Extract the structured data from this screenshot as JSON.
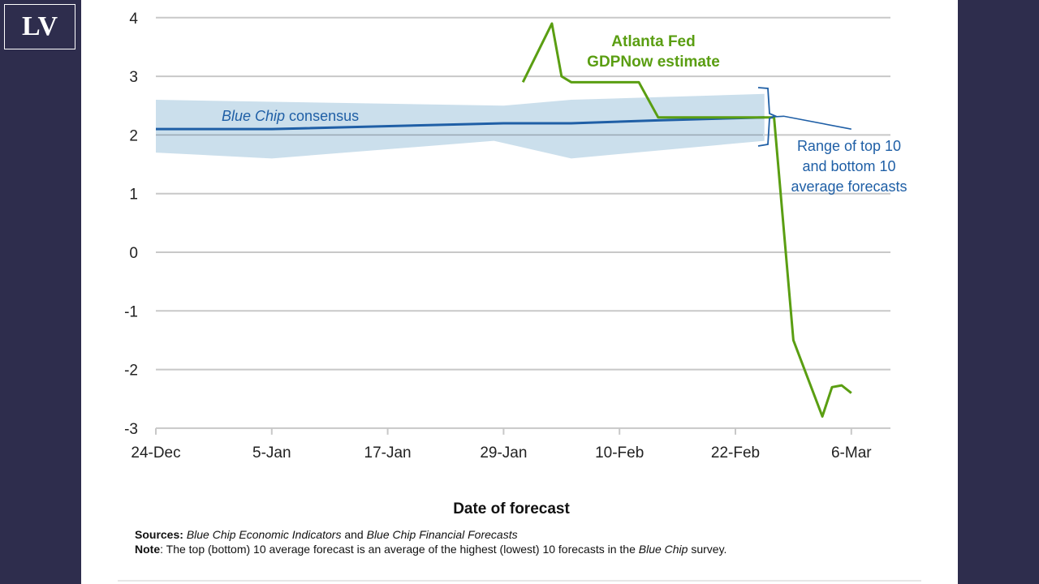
{
  "logo": "LV",
  "colors": {
    "background": "#2e2d4d",
    "consensus": "#1f5fa6",
    "band": "#c5dbea",
    "gdpnow": "#5a9e12",
    "grid": "#c8c8c8"
  },
  "chart_data": {
    "type": "line",
    "xlabel": "Date of forecast",
    "ylabel": "",
    "ylim": [
      -3,
      4
    ],
    "yticks": [
      "4",
      "3",
      "2",
      "1",
      "0",
      "-1",
      "-2",
      "-3"
    ],
    "xticks": [
      "24-Dec",
      "5-Jan",
      "17-Jan",
      "29-Jan",
      "10-Feb",
      "22-Feb",
      "6-Mar"
    ],
    "grid": true,
    "series": [
      {
        "name": "Blue Chip consensus",
        "name_italic": "Blue Chip",
        "name_rest": " consensus",
        "x": [
          "24-Dec",
          "5-Jan",
          "29-Jan",
          "5-Feb",
          "14-Feb",
          "25-Feb",
          "27-Feb",
          "6-Mar"
        ],
        "y": [
          2.1,
          2.1,
          2.2,
          2.2,
          2.25,
          2.3,
          2.32,
          2.1
        ]
      },
      {
        "name": "Atlanta Fed GDPNow estimate",
        "label_lines": [
          "Atlanta Fed",
          "GDPNow estimate"
        ],
        "x": [
          "31-Jan",
          "3-Feb",
          "4-Feb",
          "5-Feb",
          "12-Feb",
          "14-Feb",
          "26-Feb",
          "28-Feb",
          "3-Mar",
          "4-Mar",
          "5-Mar",
          "6-Mar"
        ],
        "y": [
          2.9,
          3.9,
          3.0,
          2.9,
          2.9,
          2.3,
          2.3,
          -1.5,
          -2.8,
          -2.3,
          -2.27,
          -2.4
        ]
      }
    ],
    "band": {
      "label_lines": [
        "Range of top 10",
        "and bottom 10",
        "average forecasts"
      ],
      "top": {
        "x": [
          "24-Dec",
          "29-Jan",
          "5-Feb",
          "25-Feb"
        ],
        "y": [
          2.6,
          2.5,
          2.6,
          2.7
        ]
      },
      "bottom": {
        "x": [
          "24-Dec",
          "5-Jan",
          "28-Jan",
          "5-Feb",
          "25-Feb"
        ],
        "y": [
          1.7,
          1.6,
          1.9,
          1.6,
          1.9
        ]
      }
    }
  },
  "notes": {
    "sources_label": "Sources:",
    "sources_i1": "Blue Chip Economic Indicators",
    "sources_and": " and ",
    "sources_i2": "Blue Chip Financial Forecasts",
    "note_label": "Note",
    "note_text": ": The top (bottom) 10 average forecast is an average of the highest (lowest) 10 forecasts in the ",
    "note_i": "Blue Chip",
    "note_end": " survey."
  }
}
